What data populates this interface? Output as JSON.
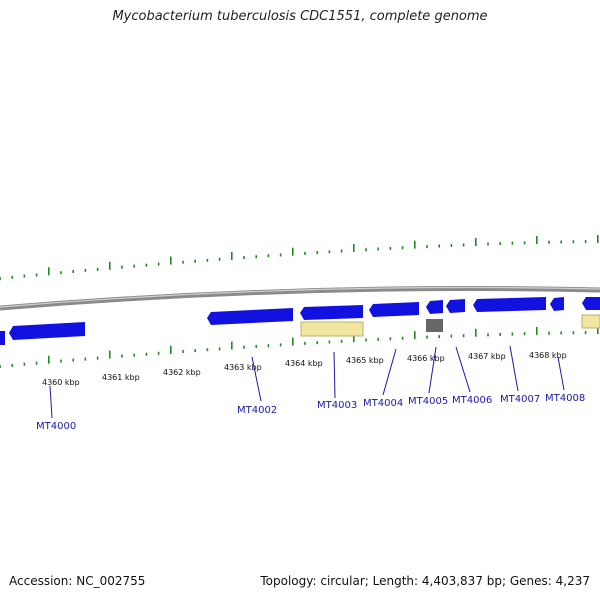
{
  "title": "Mycobacterium tuberculosis CDC1551, complete genome",
  "accession_text": "Accession: NC_002755",
  "topology_text": "Topology: circular; Length: 4,403,837 bp; Genes: 4,237",
  "colors": {
    "backbone": "#8a8a8a",
    "gene": "#1212e0",
    "rna": "#f0e6a0",
    "pseudo": "#666666",
    "tick": "#1f8a1f",
    "label": "#1a1aa8"
  },
  "scale_labels": [
    "4360 kbp",
    "4361 kbp",
    "4362 kbp",
    "4363 kbp",
    "4364 kbp",
    "4365 kbp",
    "4366 kbp",
    "4367 kbp",
    "4368 kbp"
  ],
  "gene_labels": [
    "MT4000",
    "MT4002",
    "MT4003",
    "MT4004",
    "MT4005",
    "MT4006",
    "MT4007",
    "MT4008"
  ]
}
